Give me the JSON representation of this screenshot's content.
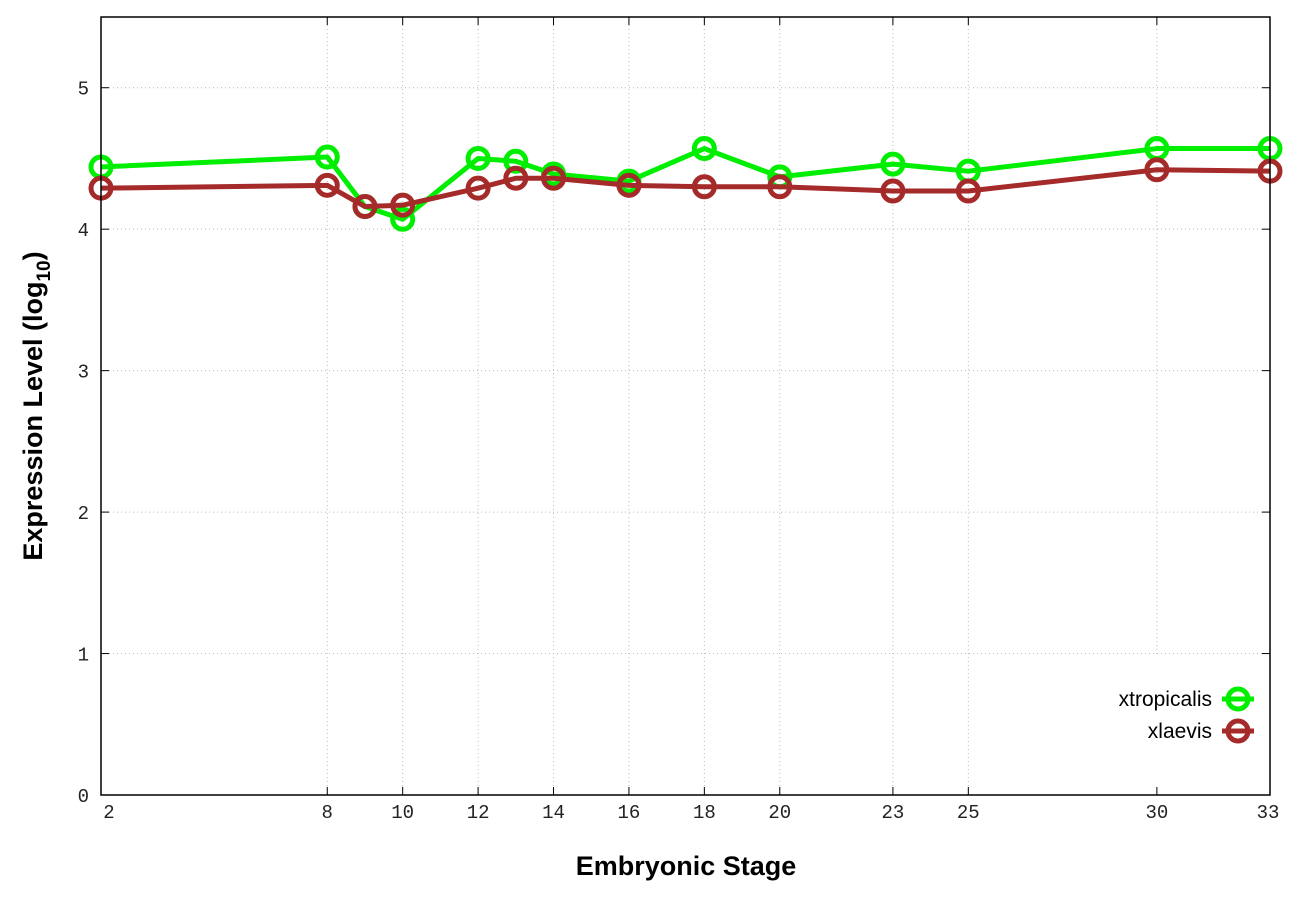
{
  "chart_data": {
    "type": "line",
    "title": "",
    "xlabel": "Embryonic Stage",
    "ylabel_main": "Expression Level (log",
    "ylabel_sub": "10",
    "ylabel_close": ")",
    "xlim": [
      2,
      33
    ],
    "ylim": [
      0,
      5.5
    ],
    "x_ticks": [
      2,
      8,
      10,
      12,
      14,
      16,
      18,
      20,
      23,
      25,
      30,
      33
    ],
    "y_ticks": [
      0,
      1,
      2,
      3,
      4,
      5
    ],
    "grid": true,
    "legend_position": "bottom-right",
    "x": [
      2,
      8,
      9,
      10,
      12,
      13,
      14,
      16,
      18,
      20,
      23,
      25,
      30,
      33
    ],
    "series": [
      {
        "name": "xtropicalis",
        "color": "#00ee00",
        "values": [
          4.44,
          4.51,
          4.16,
          4.07,
          4.5,
          4.48,
          4.39,
          4.34,
          4.57,
          4.37,
          4.46,
          4.41,
          4.57,
          4.57
        ]
      },
      {
        "name": "xlaevis",
        "color": "#a52a2a",
        "values": [
          4.29,
          4.31,
          4.16,
          4.17,
          4.29,
          4.36,
          4.36,
          4.31,
          4.3,
          4.3,
          4.27,
          4.27,
          4.42,
          4.41
        ]
      }
    ]
  }
}
